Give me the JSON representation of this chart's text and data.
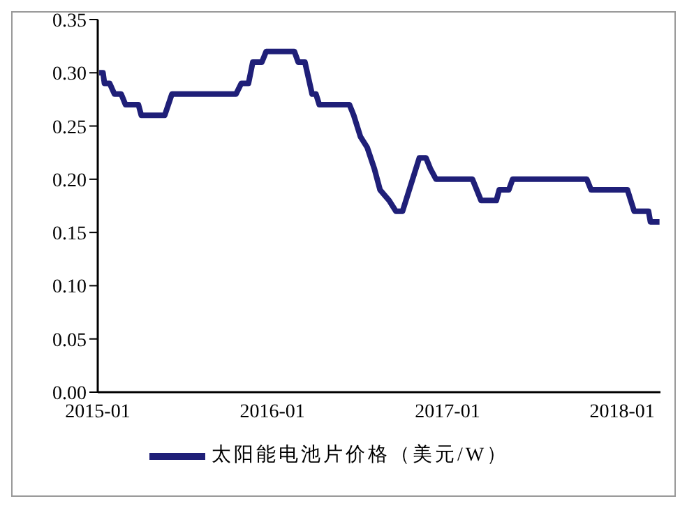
{
  "chart_data": {
    "type": "line",
    "x": [
      "2015-01-04",
      "2015-01-12",
      "2015-01-15",
      "2015-01-26",
      "2015-02-05",
      "2015-02-19",
      "2015-02-28",
      "2015-03-27",
      "2015-04-02",
      "2015-05-21",
      "2015-06-05",
      "2015-10-17",
      "2015-10-28",
      "2015-11-12",
      "2015-11-21",
      "2015-12-10",
      "2015-12-19",
      "2016-02-16",
      "2016-02-24",
      "2016-03-09",
      "2016-03-24",
      "2016-04-01",
      "2016-04-08",
      "2016-06-10",
      "2016-06-19",
      "2016-07-03",
      "2016-07-17",
      "2016-08-01",
      "2016-08-13",
      "2016-09-01",
      "2016-09-15",
      "2016-09-29",
      "2016-11-03",
      "2016-11-17",
      "2016-11-26",
      "2016-12-08",
      "2017-02-22",
      "2017-03-03",
      "2017-03-12",
      "2017-04-13",
      "2017-04-19",
      "2017-05-09",
      "2017-05-17",
      "2017-10-19",
      "2017-10-28",
      "2018-01-12",
      "2018-01-26",
      "2018-02-25",
      "2018-03-01",
      "2018-03-20"
    ],
    "series": [
      {
        "name": "太阳能电池片价格（美元/W）",
        "color": "#1f1f78",
        "values": [
          0.3,
          0.3,
          0.29,
          0.29,
          0.28,
          0.28,
          0.27,
          0.27,
          0.26,
          0.26,
          0.28,
          0.28,
          0.29,
          0.29,
          0.31,
          0.31,
          0.32,
          0.32,
          0.31,
          0.31,
          0.28,
          0.28,
          0.27,
          0.27,
          0.26,
          0.24,
          0.23,
          0.21,
          0.19,
          0.18,
          0.17,
          0.17,
          0.22,
          0.22,
          0.21,
          0.2,
          0.2,
          0.19,
          0.18,
          0.18,
          0.19,
          0.19,
          0.2,
          0.2,
          0.19,
          0.19,
          0.17,
          0.17,
          0.16,
          0.16
        ]
      }
    ],
    "xlim": [
      "2015-01-01",
      "2018-03-22"
    ],
    "xticks": [
      "2015-01",
      "2016-01",
      "2017-01",
      "2018-01"
    ],
    "ylim": [
      0,
      0.35
    ],
    "yticks": [
      {
        "value": 0,
        "label": "0.00"
      },
      {
        "value": 0.05,
        "label": "0.05"
      },
      {
        "value": 0.1,
        "label": "0.10"
      },
      {
        "value": 0.15,
        "label": "0.15"
      },
      {
        "value": 0.2,
        "label": "0.20"
      },
      {
        "value": 0.25,
        "label": "0.25"
      },
      {
        "value": 0.3,
        "label": "0.30"
      },
      {
        "value": 0.35,
        "label": "0.35"
      }
    ],
    "grid": false,
    "legend": "bottom",
    "marker": "none",
    "line_style": "solid"
  }
}
